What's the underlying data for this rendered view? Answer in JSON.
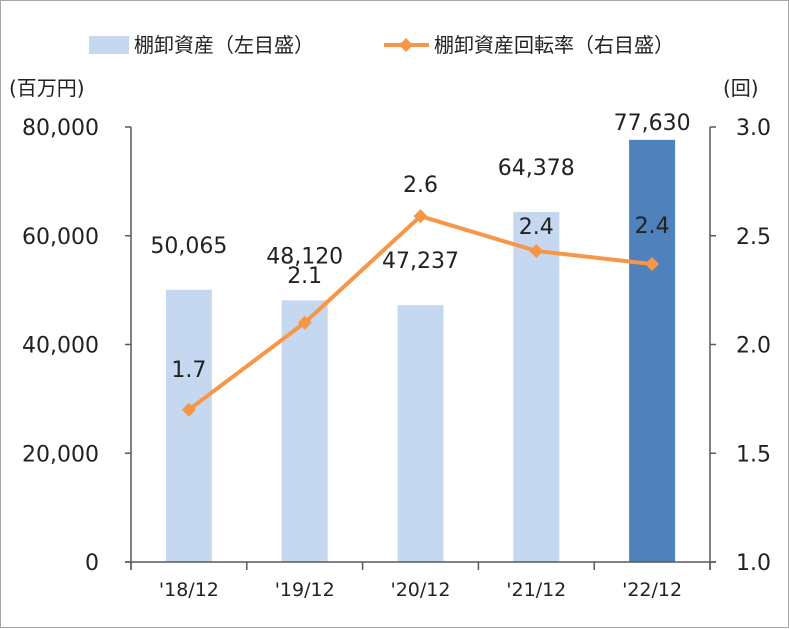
{
  "chart_data": {
    "type": "bar",
    "categories": [
      "'18/12",
      "'19/12",
      "'20/12",
      "'21/12",
      "'22/12"
    ],
    "series": [
      {
        "name": "棚卸資産（左目盛）",
        "type": "bar",
        "axis": "left",
        "values": [
          50065,
          48120,
          47237,
          64378,
          77630
        ],
        "labels": [
          "50,065",
          "48,120",
          "47,237",
          "64,378",
          "77,630"
        ],
        "color": "#c6d8f0",
        "highlight_color": "#4f81bd",
        "highlight_index": 4
      },
      {
        "name": "棚卸資産回転率（右目盛）",
        "type": "line",
        "axis": "right",
        "values": [
          1.7,
          2.1,
          2.59,
          2.43,
          2.37
        ],
        "labels": [
          "1.7",
          "2.1",
          "2.6",
          "2.4",
          "2.4"
        ],
        "color": "#f79646"
      }
    ],
    "y_left": {
      "unit": "(百万円)",
      "ylim": [
        0,
        80000
      ],
      "ticks": [
        "0",
        "20,000",
        "40,000",
        "60,000",
        "80,000"
      ]
    },
    "y_right": {
      "unit": "(回)",
      "ylim": [
        1.0,
        3.0
      ],
      "ticks": [
        "1.0",
        "1.5",
        "2.0",
        "2.5",
        "3.0"
      ]
    },
    "grid": false,
    "legend_position": "top"
  }
}
